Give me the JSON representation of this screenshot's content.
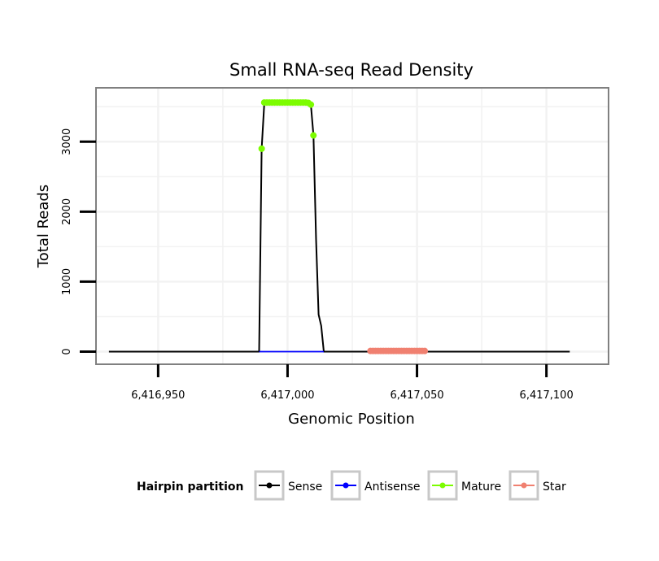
{
  "chart_data": {
    "type": "line",
    "title": "Small RNA-seq Read Density",
    "xlabel": "Genomic Position",
    "ylabel": "Total Reads",
    "xlim": [
      6416926,
      6417124
    ],
    "ylim": [
      -180,
      3770
    ],
    "x_ticks": [
      {
        "value": 6416950,
        "label": "6,416,950"
      },
      {
        "value": 6417000,
        "label": "6,417,000"
      },
      {
        "value": 6417050,
        "label": "6,417,050"
      },
      {
        "value": 6417100,
        "label": "6,417,100"
      }
    ],
    "y_ticks": [
      {
        "value": 0,
        "label": "0"
      },
      {
        "value": 1000,
        "label": "1000"
      },
      {
        "value": 2000,
        "label": "2000"
      },
      {
        "value": 3000,
        "label": "3000"
      }
    ],
    "grid": true,
    "legend": {
      "title": "Hairpin partition",
      "position": "bottom",
      "entries": [
        {
          "name": "Sense",
          "color": "#000000"
        },
        {
          "name": "Antisense",
          "color": "#0000ff"
        },
        {
          "name": "Mature",
          "color": "#7cfc00"
        },
        {
          "name": "Star",
          "color": "#f08070"
        }
      ]
    },
    "series": [
      {
        "name": "Sense",
        "kind": "line",
        "color": "#000000",
        "points": [
          [
            6416931,
            0
          ],
          [
            6416989,
            0
          ],
          [
            6416990,
            2900
          ],
          [
            6416991,
            3540
          ],
          [
            6417008,
            3560
          ],
          [
            6417009,
            3530
          ],
          [
            6417010,
            3090
          ],
          [
            6417011,
            1600
          ],
          [
            6417012,
            530
          ],
          [
            6417013,
            370
          ],
          [
            6417014,
            0
          ],
          [
            6417109,
            0
          ]
        ]
      },
      {
        "name": "Antisense",
        "kind": "line",
        "color": "#0000ff",
        "points": [
          [
            6416989,
            0
          ],
          [
            6417014,
            0
          ]
        ]
      },
      {
        "name": "Mature",
        "kind": "points",
        "color": "#7cfc00",
        "points": [
          [
            6416990,
            2900
          ],
          [
            6416991,
            3560
          ],
          [
            6416992,
            3560
          ],
          [
            6416993,
            3560
          ],
          [
            6416994,
            3560
          ],
          [
            6416995,
            3560
          ],
          [
            6416996,
            3560
          ],
          [
            6416997,
            3560
          ],
          [
            6416998,
            3560
          ],
          [
            6416999,
            3560
          ],
          [
            6417000,
            3560
          ],
          [
            6417001,
            3560
          ],
          [
            6417002,
            3560
          ],
          [
            6417003,
            3560
          ],
          [
            6417004,
            3560
          ],
          [
            6417005,
            3560
          ],
          [
            6417006,
            3560
          ],
          [
            6417007,
            3560
          ],
          [
            6417008,
            3555
          ],
          [
            6417009,
            3530
          ],
          [
            6417010,
            3090
          ]
        ]
      },
      {
        "name": "Star",
        "kind": "points",
        "color": "#f08070",
        "points": [
          [
            6417032,
            10
          ],
          [
            6417033,
            10
          ],
          [
            6417034,
            10
          ],
          [
            6417035,
            10
          ],
          [
            6417036,
            10
          ],
          [
            6417037,
            10
          ],
          [
            6417038,
            10
          ],
          [
            6417039,
            10
          ],
          [
            6417040,
            10
          ],
          [
            6417041,
            10
          ],
          [
            6417042,
            10
          ],
          [
            6417043,
            10
          ],
          [
            6417044,
            10
          ],
          [
            6417045,
            10
          ],
          [
            6417046,
            10
          ],
          [
            6417047,
            10
          ],
          [
            6417048,
            10
          ],
          [
            6417049,
            10
          ],
          [
            6417050,
            10
          ],
          [
            6417051,
            10
          ],
          [
            6417052,
            10
          ],
          [
            6417053,
            10
          ]
        ]
      }
    ]
  }
}
